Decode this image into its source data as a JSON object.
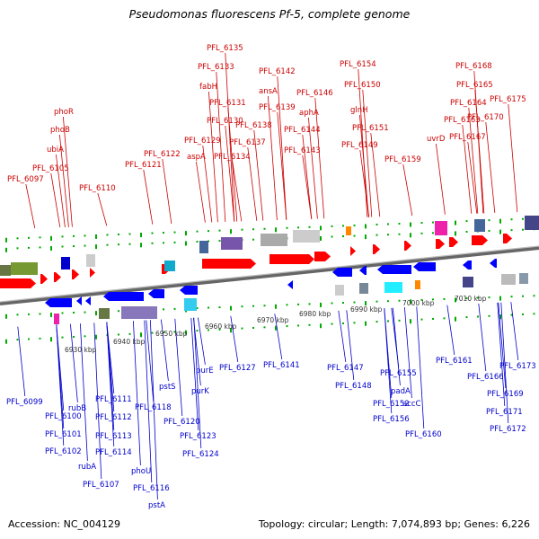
{
  "title": "Pseudomonas fluorescens Pf-5, complete genome",
  "accession": "Accession: NC_004129",
  "topology": "Topology: circular; Length: 7,074,893 bp; Genes: 6,226",
  "colors": {
    "forward": "#ff0000",
    "reverse": "#0000ff",
    "backbone": "#888888",
    "tick": "#00aa00"
  },
  "axis_labels": [
    "6930 kbp",
    "6940 kbp",
    "6950 kbp",
    "6960 kbp",
    "6970 kbp",
    "6980 kbp",
    "6990 kbp",
    "7000 kbp",
    "7010 kbp"
  ],
  "top_labels": [
    "PFL_6135",
    "PFL_6133",
    "PFL_6142",
    "PFL_6154",
    "PFL_6168",
    "fabH",
    "ansA",
    "PFL_6150",
    "PFL_6165",
    "PFL_6131",
    "PFL_6139",
    "PFL_6146",
    "PFL_6175",
    "PFL_6164",
    "phoR",
    "PFL_6130",
    "PFL_6138",
    "aphA",
    "PFL_6151",
    "glnH",
    "PFL_6163",
    "PFL_6170",
    "phoB",
    "PFL_6129",
    "PFL_6137",
    "PFL_6144",
    "PFL_6149",
    "uvrD",
    "PFL_6167",
    "PFL_6122",
    "PFL_6143",
    "ubiA",
    "aspA",
    "PFL_6134",
    "PFL_6121",
    "PFL_6159",
    "PFL_6105",
    "PFL_6097",
    "PFL_6110"
  ],
  "bottom_labels": [
    "PFL_6127",
    "PFL_6141",
    "PFL_6147",
    "PFL_6148",
    "PFL_6155",
    "PFL_6161",
    "PFL_6173",
    "PFL_6099",
    "purE",
    "padA",
    "PFL_6166",
    "rubB",
    "PFL_6111",
    "pstS",
    "PFL_6152",
    "accC",
    "PFL_6169",
    "PFL_6100",
    "PFL_6118",
    "purK",
    "PFL_6112",
    "PFL_6156",
    "PFL_6171",
    "PFL_6101",
    "PFL_6120",
    "PFL_6160",
    "PFL_6172",
    "PFL_6113",
    "PFL_6123",
    "PFL_6102",
    "PFL_6114",
    "PFL_6124",
    "rubA",
    "phoU",
    "PFL_6107",
    "PFL_6116",
    "pstA"
  ]
}
